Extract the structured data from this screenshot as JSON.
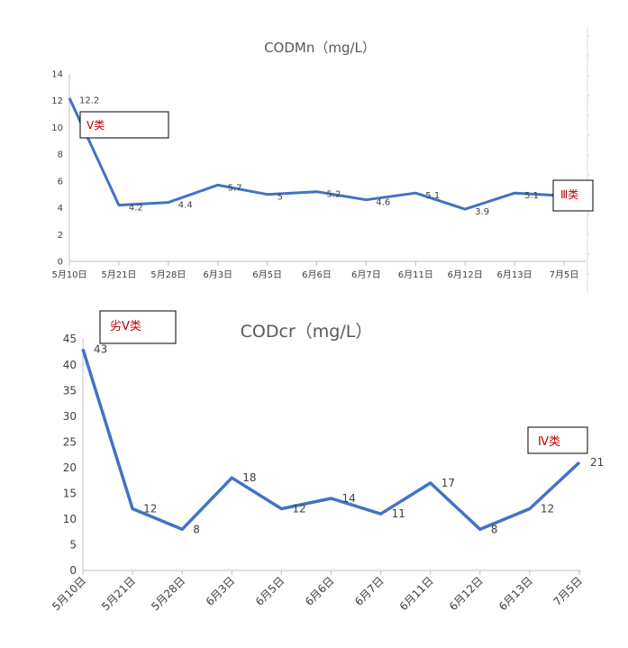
{
  "chart_data": [
    {
      "type": "line",
      "title": "CODMn（mg/L）",
      "categories": [
        "5月10日",
        "5月21日",
        "5月28日",
        "6月3日",
        "6月5日",
        "6月6日",
        "6月7日",
        "6月11日",
        "6月12日",
        "6月13日",
        "7月5日"
      ],
      "series": [
        {
          "values": [
            12.2,
            4.2,
            4.4,
            5.7,
            5.0,
            5.2,
            4.6,
            5.1,
            3.9,
            5.1,
            4.9
          ]
        }
      ],
      "data_labels": [
        "12.2",
        "4.2",
        "4.4",
        "5.7",
        "5",
        "5.2",
        "4.6",
        "5.1",
        "3.9",
        "5.1"
      ],
      "ylim": [
        0,
        14
      ],
      "yticks": [
        "0",
        "2",
        "4",
        "6",
        "8",
        "10",
        "12",
        "14"
      ],
      "grid": false,
      "line_color": "#4472c4",
      "annotations": [
        {
          "text": "V类",
          "color": "#c00000"
        },
        {
          "text": "Ⅲ类",
          "color": "#c00000"
        }
      ]
    },
    {
      "type": "line",
      "title": "CODcr（mg/L）",
      "categories": [
        "5月10日",
        "5月21日",
        "5月28日",
        "6月3日",
        "6月5日",
        "6月6日",
        "6月7日",
        "6月11日",
        "6月12日",
        "6月13日",
        "7月5日"
      ],
      "series": [
        {
          "values": [
            43,
            12,
            8,
            18,
            12,
            14,
            11,
            17,
            8,
            12,
            21
          ]
        }
      ],
      "data_labels": [
        "43",
        "12",
        "8",
        "18",
        "12",
        "14",
        "11",
        "17",
        "8",
        "12",
        "21"
      ],
      "ylim": [
        0,
        45
      ],
      "yticks": [
        "0",
        "5",
        "10",
        "15",
        "20",
        "25",
        "30",
        "35",
        "40",
        "45"
      ],
      "grid": false,
      "line_color": "#4472c4",
      "annotations": [
        {
          "text": "劣V类",
          "color": "#c00000"
        },
        {
          "text": "Ⅳ类",
          "color": "#c00000"
        }
      ]
    }
  ]
}
